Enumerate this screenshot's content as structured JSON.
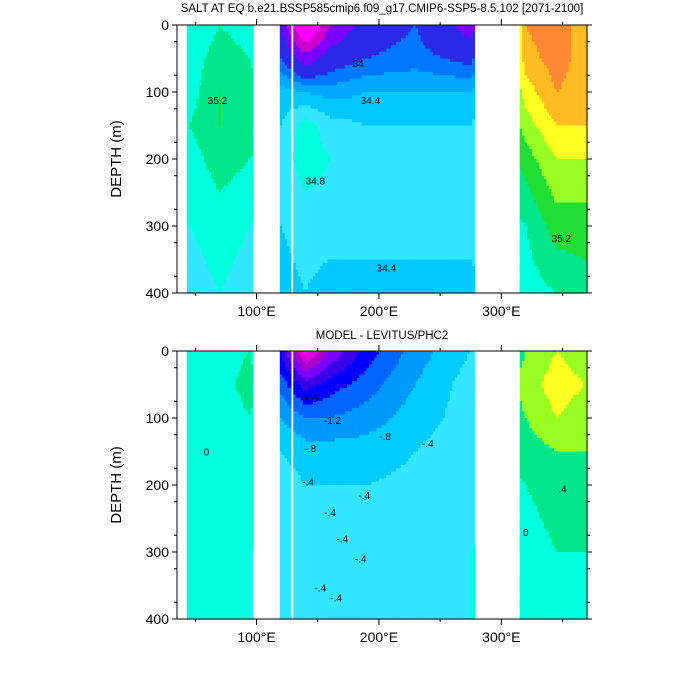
{
  "chart_data": [
    {
      "type": "heatmap",
      "title": "SALT AT EQ b.e21.BSSP585cmip6.f09_g17.CMIP6-SSP5-8.5.102 [2071-2100]",
      "ylabel": "DEPTH (m)",
      "xlabel": "",
      "xlim": [
        35,
        370
      ],
      "ylim": [
        400,
        0
      ],
      "y_ticks": [
        0,
        100,
        200,
        300,
        400
      ],
      "x_ticks": [
        {
          "value": 100,
          "label": "100°E"
        },
        {
          "value": 200,
          "label": "200°E"
        },
        {
          "value": 300,
          "label": "300°E"
        }
      ],
      "ocean_segments": [
        [
          43,
          97
        ],
        [
          119,
          128
        ],
        [
          130,
          278
        ],
        [
          315,
          370
        ]
      ],
      "depth_levels": [
        0,
        50,
        100,
        150,
        200,
        300,
        400
      ],
      "value_x": [
        45,
        70,
        95,
        120,
        140,
        160,
        190,
        230,
        275,
        320,
        345,
        368
      ],
      "values": [
        [
          34.8,
          35.0,
          34.9,
          33.6,
          32.0,
          33.2,
          33.8,
          34.0,
          33.4,
          36.0,
          36.2,
          35.8
        ],
        [
          34.9,
          35.1,
          35.0,
          34.0,
          33.4,
          33.8,
          34.0,
          34.1,
          33.9,
          35.9,
          36.1,
          35.9
        ],
        [
          34.9,
          35.2,
          35.1,
          34.5,
          34.4,
          34.3,
          34.4,
          34.4,
          34.4,
          35.7,
          36.0,
          35.9
        ],
        [
          35.0,
          35.2,
          35.1,
          34.6,
          34.9,
          34.7,
          34.6,
          34.6,
          34.6,
          35.5,
          35.8,
          35.8
        ],
        [
          34.9,
          35.1,
          35.0,
          34.7,
          34.9,
          34.8,
          34.7,
          34.7,
          34.7,
          35.3,
          35.6,
          35.6
        ],
        [
          34.8,
          34.9,
          34.8,
          34.6,
          34.7,
          34.7,
          34.7,
          34.7,
          34.7,
          35.0,
          35.3,
          35.3
        ],
        [
          34.7,
          34.8,
          34.7,
          34.5,
          34.6,
          34.5,
          34.5,
          34.5,
          34.5,
          34.9,
          35.0,
          35.1
        ]
      ],
      "contour_labels": [
        {
          "text": "35.2",
          "x": 68,
          "y": 112
        },
        {
          "text": "34",
          "x": 183,
          "y": 57
        },
        {
          "text": "34.4",
          "x": 193,
          "y": 112
        },
        {
          "text": "34.8",
          "x": 148,
          "y": 232
        },
        {
          "text": "34.4",
          "x": 206,
          "y": 362
        },
        {
          "text": "35.2",
          "x": 349,
          "y": 318
        }
      ],
      "color_scale": {
        "levels": [
          32.0,
          32.8,
          33.2,
          33.6,
          34.0,
          34.2,
          34.4,
          34.6,
          34.8,
          35.0,
          35.2,
          35.4,
          35.6,
          35.8,
          36.0
        ],
        "colors": [
          "#777777",
          "#ff00ff",
          "#cc00cc",
          "#7b00ff",
          "#2a2ae6",
          "#0077ff",
          "#00a8ff",
          "#00c8ff",
          "#33e6ff",
          "#00ffdd",
          "#00e68a",
          "#22dd33",
          "#99ff22",
          "#ffff22",
          "#ffbb22",
          "#ff8833"
        ]
      }
    },
    {
      "type": "heatmap",
      "title": "MODEL - LEVITUS/PHC2",
      "ylabel": "DEPTH (m)",
      "xlabel": "",
      "xlim": [
        35,
        370
      ],
      "ylim": [
        400,
        0
      ],
      "y_ticks": [
        0,
        100,
        200,
        300,
        400
      ],
      "x_ticks": [
        {
          "value": 100,
          "label": "100°E"
        },
        {
          "value": 200,
          "label": "200°E"
        },
        {
          "value": 300,
          "label": "300°E"
        }
      ],
      "ocean_segments": [
        [
          43,
          97
        ],
        [
          119,
          128
        ],
        [
          130,
          278
        ],
        [
          315,
          370
        ]
      ],
      "depth_levels": [
        0,
        50,
        100,
        150,
        200,
        300,
        400
      ],
      "value_x": [
        45,
        70,
        95,
        120,
        140,
        160,
        190,
        230,
        275,
        320,
        345,
        368
      ],
      "values": [
        [
          0.0,
          0.2,
          0.4,
          -2.0,
          -3.8,
          -2.8,
          -1.8,
          -1.0,
          -0.4,
          0.8,
          1.2,
          1.0
        ],
        [
          0.0,
          0.2,
          0.6,
          -1.4,
          -2.2,
          -1.8,
          -1.4,
          -0.8,
          -0.2,
          1.0,
          1.4,
          1.2
        ],
        [
          0.0,
          0.1,
          0.4,
          -0.8,
          -1.2,
          -1.2,
          -1.0,
          -0.6,
          -0.2,
          0.8,
          1.2,
          1.0
        ],
        [
          0.0,
          0.0,
          0.2,
          -0.4,
          -0.6,
          -0.6,
          -0.6,
          -0.4,
          -0.1,
          0.6,
          0.8,
          0.8
        ],
        [
          0.0,
          0.0,
          0.1,
          -0.2,
          -0.4,
          -0.4,
          -0.4,
          -0.3,
          -0.1,
          0.4,
          0.6,
          0.6
        ],
        [
          0.0,
          0.0,
          0.0,
          -0.1,
          -0.2,
          -0.3,
          -0.3,
          -0.2,
          0.0,
          0.2,
          0.4,
          0.4
        ],
        [
          0.0,
          0.0,
          0.0,
          0.0,
          -0.1,
          -0.2,
          -0.2,
          -0.1,
          0.0,
          0.1,
          0.3,
          0.3
        ]
      ],
      "contour_labels": [
        {
          "text": "-1.6",
          "x": 143,
          "y": 70
        },
        {
          "text": "-1.2",
          "x": 162,
          "y": 103
        },
        {
          "text": "-.8",
          "x": 205,
          "y": 127
        },
        {
          "text": "-.4",
          "x": 240,
          "y": 137
        },
        {
          "text": "-.8",
          "x": 144,
          "y": 145
        },
        {
          "text": "0",
          "x": 59,
          "y": 150
        },
        {
          "text": "-.4",
          "x": 142,
          "y": 195
        },
        {
          "text": ".4",
          "x": 350,
          "y": 205
        },
        {
          "text": "-.4",
          "x": 188,
          "y": 215
        },
        {
          "text": "-.4",
          "x": 160,
          "y": 240
        },
        {
          "text": "-.4",
          "x": 170,
          "y": 280
        },
        {
          "text": "0",
          "x": 320,
          "y": 270
        },
        {
          "text": "-.4",
          "x": 185,
          "y": 310
        },
        {
          "text": "-.4",
          "x": 152,
          "y": 353
        },
        {
          "text": "-.4",
          "x": 165,
          "y": 368
        }
      ],
      "color_scale": {
        "levels": [
          -3.6,
          -3.2,
          -2.8,
          -2.4,
          -2.0,
          -1.6,
          -1.2,
          -0.8,
          -0.4,
          0.0,
          0.4,
          0.8,
          1.2,
          1.6
        ],
        "colors": [
          "#ff00ff",
          "#dd00dd",
          "#aa00cc",
          "#7b00ff",
          "#3a00e6",
          "#0000ff",
          "#0066ff",
          "#0099ff",
          "#00ccff",
          "#33e6ff",
          "#00ffdd",
          "#00e68a",
          "#99ff22",
          "#ffff22",
          "#ffbb22"
        ]
      }
    }
  ]
}
